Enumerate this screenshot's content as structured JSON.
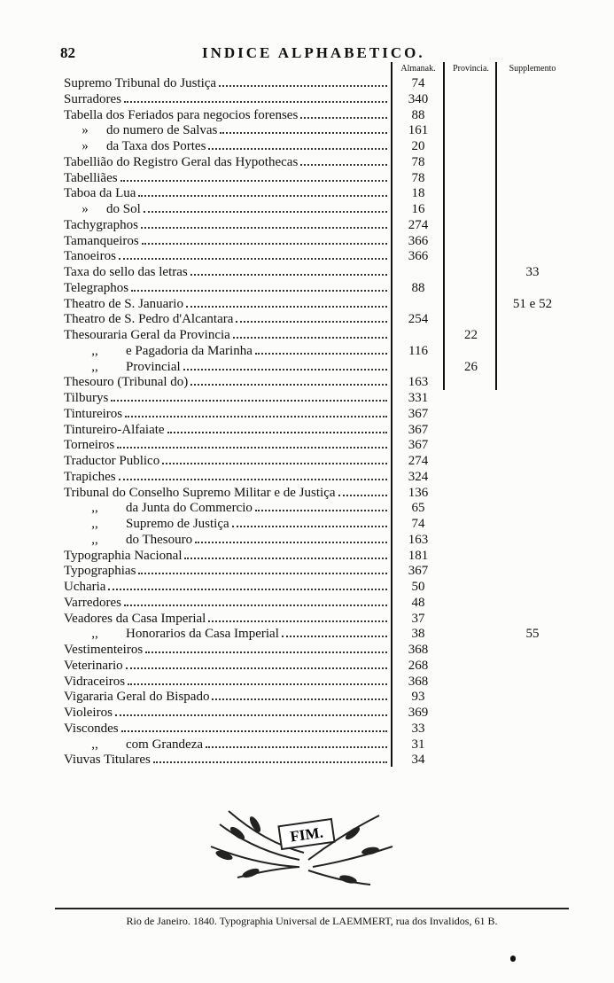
{
  "header": {
    "page_number": "82",
    "title": "INDICE ALPHABETICO."
  },
  "columns": [
    "Almanak.",
    "Provincia.",
    "Supplemento"
  ],
  "rows": [
    {
      "text": "Supremo Tribunal do Justiça",
      "almanak": "74"
    },
    {
      "text": "Surradores",
      "almanak": "340"
    },
    {
      "text": "Tabella dos Feriados para negocios forenses",
      "almanak": "88"
    },
    {
      "prefix": "»",
      "text": "do numero de Salvas",
      "almanak": "161"
    },
    {
      "prefix": "»",
      "text": "da Taxa dos Portes",
      "almanak": "20"
    },
    {
      "text": "Tabellião do Registro Geral das Hypothecas",
      "almanak": "78"
    },
    {
      "text": "Tabelliães",
      "almanak": "78"
    },
    {
      "text": "Taboa da Lua",
      "almanak": "18"
    },
    {
      "prefix": "»",
      "text": "do Sol",
      "almanak": "16"
    },
    {
      "text": "Tachygraphos",
      "almanak": "274"
    },
    {
      "text": "Tamanqueiros",
      "almanak": "366"
    },
    {
      "text": "Tanoeiros",
      "almanak": "366"
    },
    {
      "text": "Taxa do sello das letras",
      "supplemento": "33"
    },
    {
      "text": "Telegraphos",
      "almanak": "88"
    },
    {
      "text": "Theatro de S. Januario",
      "supplemento": "51 e 52"
    },
    {
      "text": "Theatro de S. Pedro d'Alcantara",
      "almanak": "254"
    },
    {
      "text": "Thesouraria Geral da Provincia",
      "provincia": "22"
    },
    {
      "prefix": ",,",
      "text": "e Pagadoria da Marinha",
      "almanak": "116"
    },
    {
      "prefix": ",,",
      "text": "Provincial",
      "provincia": "26"
    },
    {
      "text": "Thesouro (Tribunal do)",
      "almanak": "163"
    },
    {
      "text": "Tilburys",
      "almanak": "331"
    },
    {
      "text": "Tintureiros",
      "almanak": "367"
    },
    {
      "text": "Tintureiro-Alfaiate",
      "almanak": "367"
    },
    {
      "text": "Torneiros",
      "almanak": "367"
    },
    {
      "text": "Traductor Publico",
      "almanak": "274"
    },
    {
      "text": "Trapiches",
      "almanak": "324"
    },
    {
      "text": "Tribunal do Conselho Supremo Militar e de Justiça",
      "almanak": "136"
    },
    {
      "prefix": ",,",
      "text": "da Junta do Commercio",
      "almanak": "65"
    },
    {
      "prefix": ",,",
      "text": "Supremo de Justiça",
      "almanak": "74"
    },
    {
      "prefix": ",,",
      "text": "do Thesouro",
      "almanak": "163"
    },
    {
      "text": "Typographia Nacional",
      "almanak": "181"
    },
    {
      "text": "Typographias",
      "almanak": "367"
    },
    {
      "text": "Ucharia",
      "almanak": "50"
    },
    {
      "text": "Varredores",
      "almanak": "48"
    },
    {
      "text": "Veadores da Casa Imperial",
      "almanak": "37"
    },
    {
      "prefix": ",,",
      "text": "Honorarios da Casa Imperial",
      "almanak": "38",
      "supplemento": "55"
    },
    {
      "text": "Vestimenteiros",
      "almanak": "368"
    },
    {
      "text": "Veterinario",
      "almanak": "268"
    },
    {
      "text": "Vidraceiros",
      "almanak": "368"
    },
    {
      "text": "Vigararia Geral do Bispado",
      "almanak": "93"
    },
    {
      "text": "Violeiros",
      "almanak": "369"
    },
    {
      "text": "Viscondes",
      "almanak": "33"
    },
    {
      "prefix": ",,",
      "text": "com Grandeza",
      "almanak": "31"
    },
    {
      "text": "Viuvas Titulares",
      "almanak": "34"
    }
  ],
  "ornament": {
    "label": "FIM."
  },
  "footer": "Rio de Janeiro. 1840. Typographia Universal de LAEMMERT, rua dos Invalidos, 61 B."
}
